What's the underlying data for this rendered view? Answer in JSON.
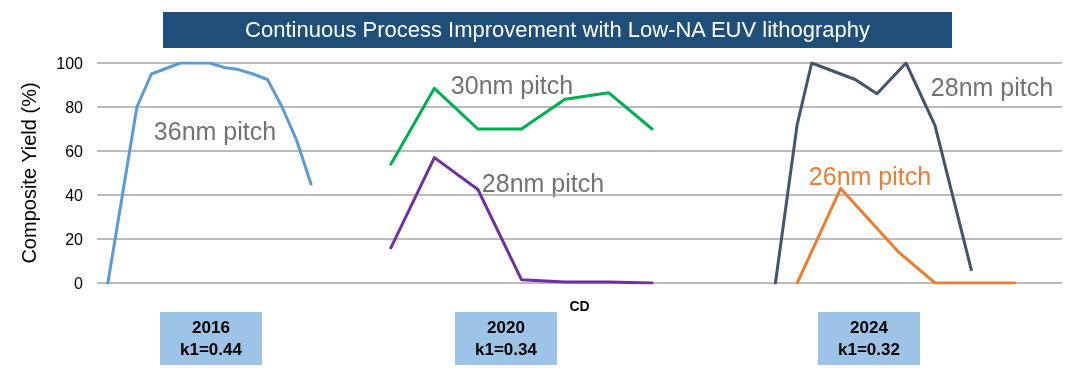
{
  "chart_data": {
    "type": "line",
    "title": "Continuous Process Improvement with Low-NA EUV lithography",
    "ylabel": "Composite Yield (%)",
    "xlabel": "CD",
    "annotations": [
      "2016",
      "k1=0.44",
      "2020",
      "k1=0.34",
      "2024",
      "k1=0.32"
    ],
    "categories": [
      null,
      null,
      null,
      null,
      null,
      null,
      null,
      null,
      null,
      null,
      null,
      null,
      null,
      null,
      null,
      null,
      null,
      null,
      null,
      null,
      null,
      null,
      null,
      null,
      null,
      null,
      null,
      null,
      null,
      null,
      null,
      null,
      null,
      null,
      null,
      null,
      null,
      null,
      null,
      null,
      null,
      null,
      null,
      null,
      null,
      null,
      null,
      null,
      null,
      null,
      null,
      null,
      null,
      null,
      null,
      null,
      null,
      null,
      null,
      null,
      null,
      null,
      null,
      null,
      null,
      null,
      null,
      null,
      null,
      null,
      null,
      null,
      null,
      null,
      null,
      null,
      null,
      null,
      null,
      null,
      null,
      null,
      null,
      null,
      null,
      null,
      null,
      null,
      null,
      null,
      null,
      null,
      null,
      null,
      null,
      null,
      null,
      null,
      null,
      null,
      null,
      null,
      null,
      null,
      null,
      null,
      null,
      null,
      null,
      null,
      null,
      null,
      null,
      null,
      null,
      null,
      null,
      null,
      null,
      null,
      null,
      null,
      null,
      null,
      null,
      null,
      null,
      null,
      null,
      null,
      null,
      null,
      null
    ],
    "series": [
      {
        "name": "36nm pitch",
        "color": "#5b9bd5",
        "values": [
          null,
          0,
          null,
          40,
          null,
          80,
          null,
          95,
          null,
          97.5,
          null,
          100,
          null,
          100,
          null,
          100,
          null,
          98,
          null,
          97,
          null,
          95,
          null,
          92.5,
          null,
          80,
          null,
          65,
          null,
          45,
          null,
          null,
          null,
          null,
          null,
          null,
          null,
          null,
          null,
          null,
          null,
          null,
          null,
          null,
          null,
          null,
          null,
          null,
          null,
          null,
          null,
          null,
          null,
          null,
          null,
          null,
          null,
          null,
          null,
          null,
          null,
          null,
          null,
          null,
          null,
          null,
          null,
          null,
          null,
          null,
          null,
          null,
          null,
          null,
          null,
          null,
          null,
          null,
          null,
          null,
          null,
          null,
          null,
          null,
          null,
          null,
          null,
          null,
          null,
          null,
          null,
          null,
          null,
          null,
          null,
          null,
          null,
          null,
          null,
          null,
          null,
          null,
          null,
          null,
          null,
          null,
          null,
          null,
          null,
          null,
          null,
          null,
          null,
          null,
          null,
          null,
          null,
          null,
          null,
          null,
          null,
          null,
          null,
          null,
          null,
          null,
          null,
          null,
          null,
          null,
          null,
          null,
          null
        ]
      },
      {
        "name": "30nm pitch",
        "color": "#00b050",
        "values": [
          null,
          null,
          null,
          null,
          null,
          null,
          null,
          null,
          null,
          null,
          null,
          null,
          null,
          null,
          null,
          null,
          null,
          null,
          null,
          null,
          null,
          null,
          null,
          null,
          null,
          null,
          null,
          null,
          null,
          null,
          null,
          null,
          null,
          null,
          null,
          null,
          null,
          null,
          null,
          null,
          54,
          null,
          null,
          null,
          null,
          null,
          88.5,
          null,
          null,
          null,
          null,
          null,
          70,
          null,
          null,
          null,
          null,
          null,
          70,
          null,
          null,
          null,
          null,
          null,
          83.5,
          null,
          null,
          null,
          null,
          null,
          86.5,
          null,
          null,
          null,
          null,
          null,
          70,
          null,
          null,
          null,
          null,
          null,
          null,
          null,
          null,
          null,
          null,
          null,
          null,
          null,
          null,
          null,
          null,
          null,
          null,
          null,
          null,
          null,
          null,
          null,
          null,
          null,
          null,
          null,
          null,
          null,
          null,
          null,
          null,
          null,
          null,
          null,
          null,
          null,
          null,
          null,
          null,
          null,
          null,
          null,
          null,
          null,
          null,
          null,
          null,
          null,
          null,
          null,
          null,
          null,
          null,
          null,
          null
        ]
      },
      {
        "name": "28nm pitch",
        "color": "#7030a0",
        "values": [
          null,
          null,
          null,
          null,
          null,
          null,
          null,
          null,
          null,
          null,
          null,
          null,
          null,
          null,
          null,
          null,
          null,
          null,
          null,
          null,
          null,
          null,
          null,
          null,
          null,
          null,
          null,
          null,
          null,
          null,
          null,
          null,
          null,
          null,
          null,
          null,
          null,
          null,
          null,
          null,
          16,
          null,
          null,
          null,
          null,
          null,
          57,
          null,
          null,
          null,
          null,
          null,
          42.5,
          null,
          null,
          null,
          null,
          null,
          1.5,
          null,
          null,
          null,
          null,
          null,
          0.5,
          null,
          null,
          null,
          null,
          null,
          0.5,
          null,
          null,
          null,
          null,
          null,
          0,
          null,
          null,
          null,
          null,
          null,
          null,
          null,
          null,
          null,
          null,
          null,
          null,
          null,
          null,
          null,
          null,
          null,
          null,
          null,
          null,
          null,
          null,
          null,
          null,
          null,
          null,
          null,
          null,
          null,
          null,
          null,
          null,
          null,
          null,
          null,
          null,
          null,
          null,
          null,
          null,
          null,
          null,
          null,
          null,
          null,
          null,
          null,
          null,
          null,
          null,
          null,
          null,
          null,
          null,
          null,
          null
        ]
      },
      {
        "name": "28nm pitch",
        "color": "#44546a",
        "values": [
          null,
          null,
          null,
          null,
          null,
          null,
          null,
          null,
          null,
          null,
          null,
          null,
          null,
          null,
          null,
          null,
          null,
          null,
          null,
          null,
          null,
          null,
          null,
          null,
          null,
          null,
          null,
          null,
          null,
          null,
          null,
          null,
          null,
          null,
          null,
          null,
          null,
          null,
          null,
          null,
          null,
          null,
          null,
          null,
          null,
          null,
          null,
          null,
          null,
          null,
          null,
          null,
          null,
          null,
          null,
          null,
          null,
          null,
          null,
          null,
          null,
          null,
          null,
          null,
          null,
          null,
          null,
          null,
          null,
          null,
          null,
          null,
          null,
          null,
          null,
          null,
          null,
          null,
          null,
          null,
          null,
          null,
          null,
          null,
          null,
          null,
          null,
          null,
          null,
          null,
          null,
          null,
          null,
          0,
          null,
          null,
          72,
          null,
          100,
          null,
          null,
          null,
          null,
          null,
          92.5,
          null,
          null,
          86,
          null,
          null,
          null,
          100,
          null,
          null,
          null,
          71.5,
          null,
          null,
          null,
          null,
          6,
          null,
          null,
          null,
          null,
          null,
          null,
          null,
          null,
          null,
          null,
          null,
          null
        ]
      },
      {
        "name": "26nm pitch",
        "color": "#ed7d31",
        "values": [
          null,
          null,
          null,
          null,
          null,
          null,
          null,
          null,
          null,
          null,
          null,
          null,
          null,
          null,
          null,
          null,
          null,
          null,
          null,
          null,
          null,
          null,
          null,
          null,
          null,
          null,
          null,
          null,
          null,
          null,
          null,
          null,
          null,
          null,
          null,
          null,
          null,
          null,
          null,
          null,
          null,
          null,
          null,
          null,
          null,
          null,
          null,
          null,
          null,
          null,
          null,
          null,
          null,
          null,
          null,
          null,
          null,
          null,
          null,
          null,
          null,
          null,
          null,
          null,
          null,
          null,
          null,
          null,
          null,
          null,
          null,
          null,
          null,
          null,
          null,
          null,
          null,
          null,
          null,
          null,
          null,
          null,
          null,
          null,
          null,
          null,
          null,
          null,
          null,
          null,
          null,
          null,
          null,
          null,
          null,
          null,
          0,
          null,
          null,
          null,
          null,
          null,
          43,
          null,
          null,
          null,
          null,
          null,
          null,
          null,
          14,
          null,
          null,
          null,
          null,
          0,
          null,
          null,
          null,
          null,
          null,
          null,
          null,
          null,
          null,
          null,
          0,
          null,
          null,
          null,
          null,
          null,
          null
        ]
      }
    ],
    "ylim": [
      0,
      100
    ],
    "yticks": [
      0,
      20,
      40,
      60,
      80,
      100
    ],
    "grid": "y",
    "legend": false,
    "line_style": "solid",
    "tick_labels": "y"
  }
}
